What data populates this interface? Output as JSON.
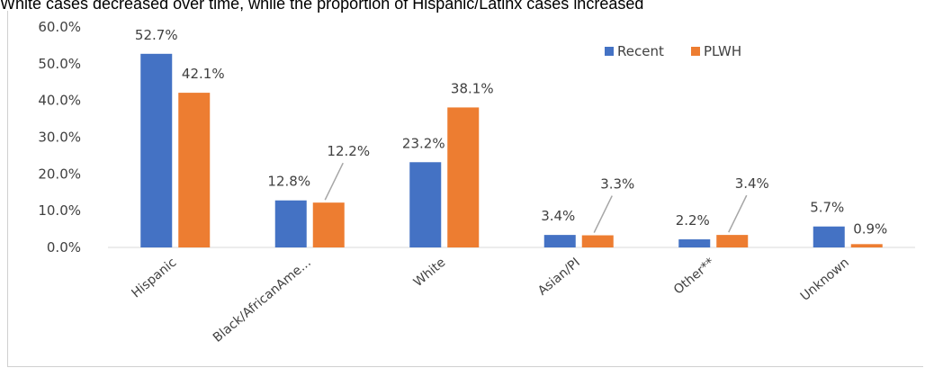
{
  "heading": "White cases decreased over time, while the proportion of Hispanic/Latinx cases increased",
  "chart_data": {
    "type": "bar",
    "categories": [
      "Hispanic",
      "Black/AfricanAme...",
      "White",
      "Asian/PI",
      "Other**",
      "Unknown"
    ],
    "series": [
      {
        "name": "Recent",
        "color": "#4472C4",
        "values": [
          52.7,
          12.8,
          23.2,
          3.4,
          2.2,
          5.7
        ],
        "labels": [
          "52.7%",
          "12.8%",
          "23.2%",
          "3.4%",
          "2.2%",
          "5.7%"
        ]
      },
      {
        "name": "PLWH",
        "color": "#ED7D31",
        "values": [
          42.1,
          12.2,
          38.1,
          3.3,
          3.4,
          0.9
        ],
        "labels": [
          "42.1%",
          "12.2%",
          "38.1%",
          "3.3%",
          "3.4%",
          "0.9%"
        ]
      }
    ],
    "yticks": [
      "0.0%",
      "10.0%",
      "20.0%",
      "30.0%",
      "40.0%",
      "50.0%",
      "60.0%"
    ],
    "ylim": [
      0,
      60
    ],
    "grid": false,
    "legend": "top-right",
    "title": "",
    "xlabel": "",
    "ylabel": ""
  }
}
